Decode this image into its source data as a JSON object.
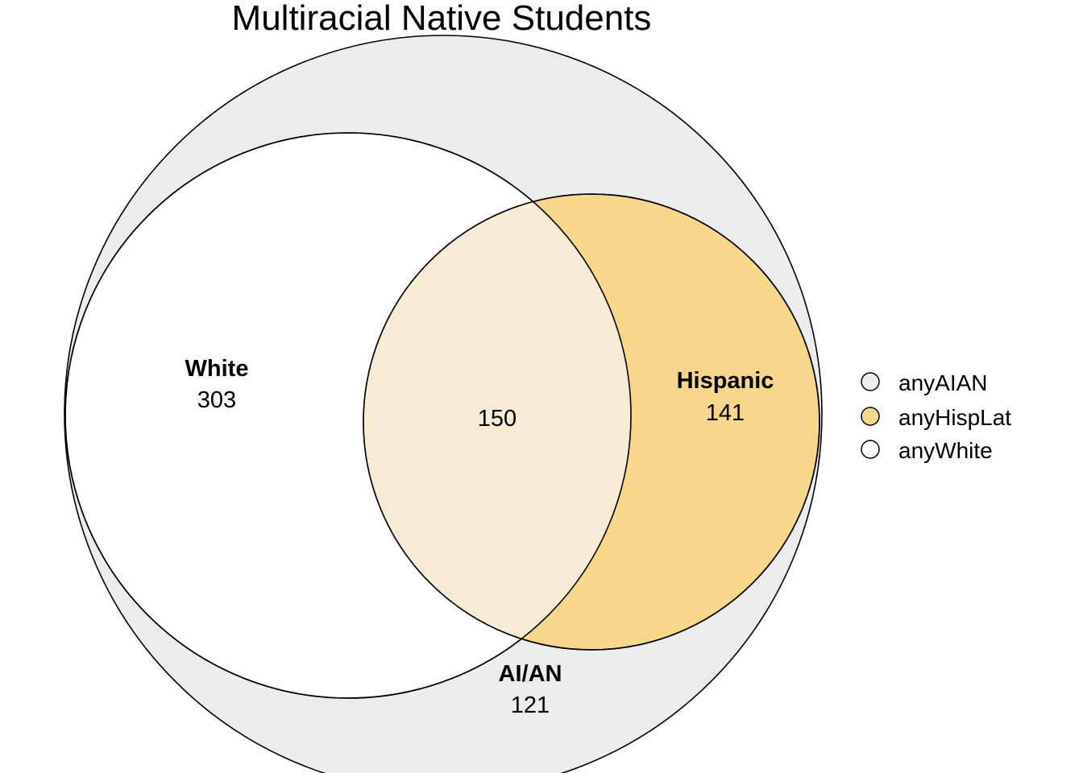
{
  "chart_data": {
    "type": "venn",
    "title": "Multiracial Native Students",
    "sets": [
      {
        "key": "anyAIAN",
        "label": "AI/AN",
        "color": "#ececec"
      },
      {
        "key": "anyHispLat",
        "label": "Hispanic",
        "color": "#f7d88a"
      },
      {
        "key": "anyWhite",
        "label": "White",
        "color": "#ffffff"
      }
    ],
    "regions": [
      {
        "sets": [
          "anyAIAN",
          "anyWhite"
        ],
        "count": "303",
        "label": "White"
      },
      {
        "sets": [
          "anyAIAN",
          "anyWhite",
          "anyHispLat"
        ],
        "count": "150",
        "label": ""
      },
      {
        "sets": [
          "anyAIAN",
          "anyHispLat"
        ],
        "count": "141",
        "label": "Hispanic"
      },
      {
        "sets": [
          "anyAIAN"
        ],
        "count": "121",
        "label": "AI/AN"
      }
    ],
    "legend": {
      "position": "right",
      "entries": [
        "anyAIAN",
        "anyHispLat",
        "anyWhite"
      ]
    },
    "overlap_color": "#f7ecd3",
    "outline_color": "#000000"
  }
}
